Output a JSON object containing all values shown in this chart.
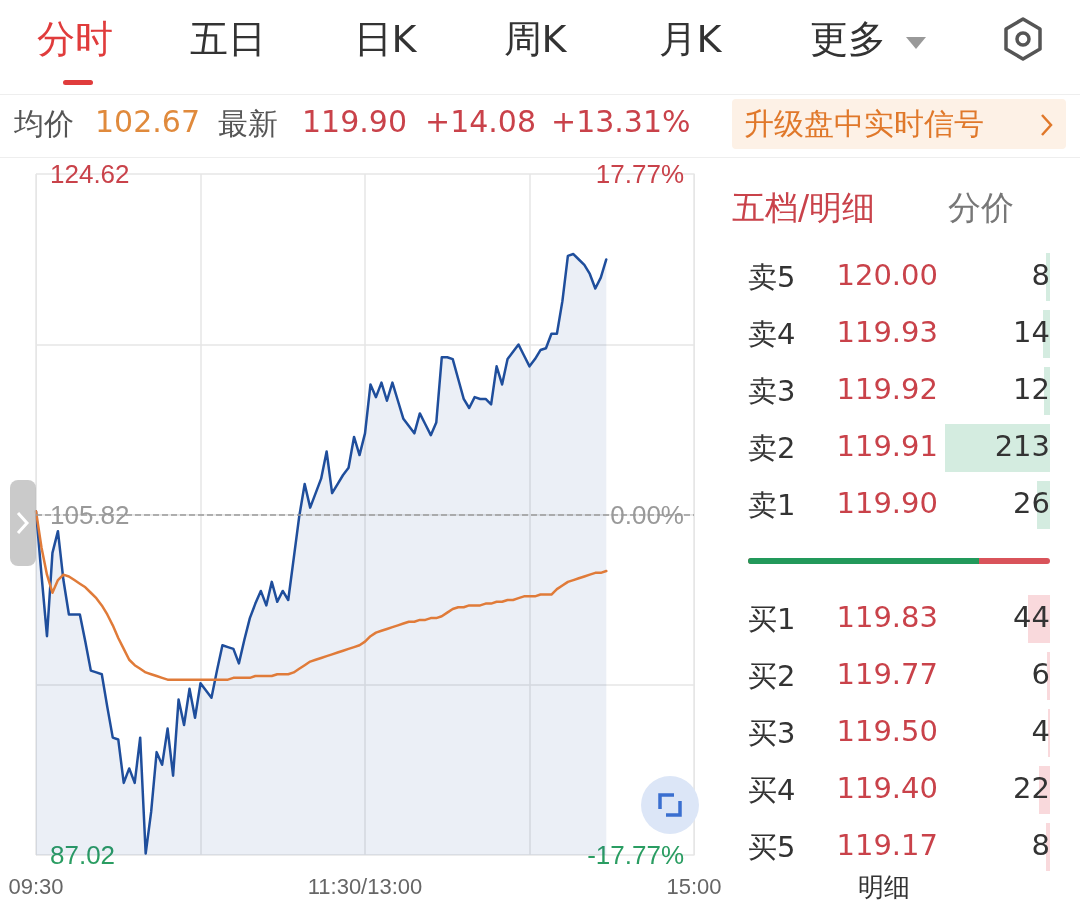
{
  "chart_data": [
    {
      "type": "other",
      "annotations": [
        "分时",
        "五日",
        "日K",
        "周K",
        "月K",
        "更多",
        "均价",
        "102.67",
        "最新",
        "119.90",
        "+14.08",
        "+13.31%",
        "升级盘中实时信号"
      ]
    },
    {
      "type": "area",
      "categories": [
        "09:30",
        null,
        null,
        null,
        null,
        null,
        null,
        null,
        null,
        null,
        null,
        null,
        null,
        null,
        null,
        null,
        null,
        null,
        null,
        null,
        null,
        null,
        null,
        null,
        null,
        null,
        null,
        null,
        null,
        null,
        null,
        null,
        null,
        null,
        null,
        null,
        null,
        null,
        null,
        null,
        null,
        null,
        null,
        null,
        null,
        null,
        null,
        null,
        null,
        null,
        null,
        null,
        null,
        null,
        null,
        null,
        null,
        null,
        null,
        null,
        "11:30/13:00",
        null,
        null,
        null,
        null,
        null,
        null,
        null,
        null,
        null,
        null,
        null,
        null,
        null,
        null,
        null,
        null,
        null,
        null,
        null,
        null,
        null,
        null,
        null,
        null,
        null,
        null,
        null,
        null,
        null,
        null,
        null,
        null,
        null,
        null,
        null,
        null,
        null,
        null,
        null,
        null,
        null,
        null,
        null,
        null,
        null,
        null,
        null,
        null,
        null,
        null,
        null,
        null,
        null,
        null,
        null,
        null,
        null,
        null,
        null,
        "15:00"
      ],
      "series": [
        {
          "color": "#1f4e9c",
          "values": [
            106.0,
            102.5,
            99.1,
            103.7,
            104.9,
            102.2,
            100.3,
            100.3,
            100.3,
            98.8,
            97.2,
            97.1,
            97.0,
            95.2,
            93.5,
            93.4,
            91.0,
            91.8,
            91.0,
            93.5,
            87.1,
            89.4,
            92.7,
            92.0,
            94.0,
            91.4,
            95.6,
            94.2,
            96.2,
            94.6,
            96.5,
            96.1,
            95.7,
            97.2,
            98.6,
            98.5,
            98.4,
            97.6,
            98.9,
            100.1,
            100.9,
            101.6,
            100.8,
            102.1,
            101.0,
            101.6,
            101.1,
            103.4,
            105.7,
            107.5,
            106.2,
            107.0,
            107.8,
            109.3,
            107.0,
            107.5,
            108.0,
            108.4,
            110.1,
            109.1,
            110.3,
            113.0,
            112.3,
            113.1,
            112.1,
            113.1,
            112.1,
            111.1,
            110.7,
            110.3,
            111.4,
            110.8,
            110.2,
            110.9,
            114.5,
            114.5,
            114.4,
            113.3,
            112.2,
            111.7,
            112.3,
            112.2,
            112.2,
            111.9,
            114.0,
            113.0,
            114.4,
            114.8,
            115.2,
            114.6,
            114.0,
            114.4,
            114.9,
            115.0,
            115.8,
            115.8,
            117.6,
            120.1,
            120.2,
            119.9,
            119.6,
            119.1,
            118.3,
            118.9,
            119.9,
            null,
            null,
            null,
            null,
            null,
            null,
            null,
            null,
            null,
            null,
            null,
            null,
            null,
            null,
            null,
            null
          ]
        },
        {
          "type": "line",
          "color": "#e07b39",
          "values": [
            106.0,
            104.0,
            102.5,
            101.5,
            102.2,
            102.5,
            102.4,
            102.2,
            102.0,
            101.8,
            101.5,
            101.2,
            100.8,
            100.3,
            99.7,
            99.0,
            98.4,
            97.8,
            97.5,
            97.3,
            97.1,
            97.0,
            96.9,
            96.8,
            96.7,
            96.7,
            96.7,
            96.7,
            96.7,
            96.7,
            96.7,
            96.7,
            96.7,
            96.7,
            96.7,
            96.7,
            96.8,
            96.8,
            96.8,
            96.8,
            96.9,
            96.9,
            96.9,
            96.9,
            97.0,
            97.0,
            97.0,
            97.1,
            97.3,
            97.5,
            97.7,
            97.8,
            97.9,
            98.0,
            98.1,
            98.2,
            98.3,
            98.4,
            98.5,
            98.6,
            98.8,
            99.1,
            99.3,
            99.4,
            99.5,
            99.6,
            99.7,
            99.8,
            99.9,
            99.9,
            100.0,
            100.0,
            100.1,
            100.1,
            100.2,
            100.4,
            100.6,
            100.7,
            100.7,
            100.8,
            100.8,
            100.8,
            100.9,
            100.9,
            101.0,
            101.0,
            101.1,
            101.1,
            101.2,
            101.3,
            101.3,
            101.3,
            101.4,
            101.4,
            101.4,
            101.7,
            101.9,
            102.1,
            102.2,
            102.3,
            102.4,
            102.5,
            102.6,
            102.6,
            102.7,
            null,
            null,
            null,
            null,
            null,
            null,
            null,
            null,
            null,
            null,
            null,
            null,
            null,
            null,
            null,
            null
          ]
        }
      ],
      "ylim": [
        87.02,
        124.62
      ],
      "yticks": [
        87.02,
        {
          "value": 96.42,
          "label": null
        },
        105.82,
        {
          "value": 115.22,
          "label": null
        },
        124.62
      ],
      "y2lim": [
        -17.77,
        17.77
      ],
      "y2ticks": [
        {
          "value": -17.77,
          "label": "-17.77%"
        },
        {
          "value": 0,
          "label": "0.00%"
        },
        {
          "value": 17.77,
          "label": "17.77%"
        }
      ],
      "ref_lines": [
        {
          "axis": "y",
          "value": 105.82,
          "color": "#9a9a9a",
          "line_style": "dashed"
        }
      ],
      "grid": true
    },
    {
      "type": "bar",
      "orientation": "horizontal",
      "title": "五档/明细",
      "annotations": [
        "分价",
        "明细",
        "120.00",
        "119.93",
        "119.92",
        "119.91",
        "119.90",
        "119.83",
        "119.77",
        "119.50",
        "119.40",
        "119.17"
      ],
      "categories": [
        "卖5",
        "卖4",
        "卖3",
        "卖2",
        "卖1",
        "买1",
        "买2",
        "买3",
        "买4",
        "买5"
      ],
      "data_labels": true,
      "series": [
        {
          "colors": [
            "#d4ece0",
            "#d4ece0",
            "#d4ece0",
            "#d4ece0",
            "#d4ece0",
            "#f9d9dc",
            "#f9d9dc",
            "#f9d9dc",
            "#f9d9dc",
            "#f9d9dc"
          ],
          "values": [
            8,
            14,
            12,
            213,
            26,
            44,
            6,
            4,
            22,
            8
          ]
        }
      ]
    }
  ]
}
